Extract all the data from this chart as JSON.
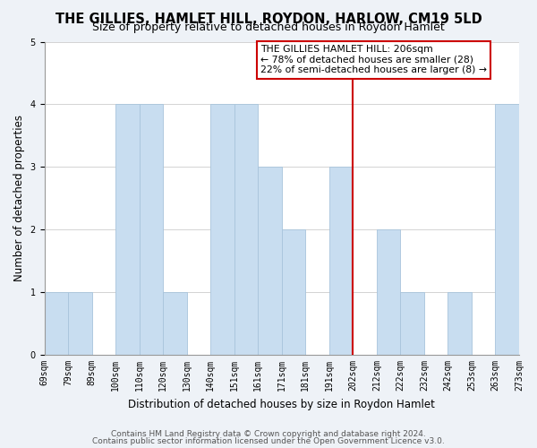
{
  "title": "THE GILLIES, HAMLET HILL, ROYDON, HARLOW, CM19 5LD",
  "subtitle": "Size of property relative to detached houses in Roydon Hamlet",
  "xlabel": "Distribution of detached houses by size in Roydon Hamlet",
  "ylabel": "Number of detached properties",
  "bin_edges": [
    "69sqm",
    "79sqm",
    "89sqm",
    "100sqm",
    "110sqm",
    "120sqm",
    "130sqm",
    "140sqm",
    "151sqm",
    "161sqm",
    "171sqm",
    "181sqm",
    "191sqm",
    "202sqm",
    "212sqm",
    "222sqm",
    "232sqm",
    "242sqm",
    "253sqm",
    "263sqm",
    "273sqm"
  ],
  "bar_values": [
    1,
    1,
    0,
    4,
    4,
    1,
    0,
    4,
    4,
    3,
    2,
    0,
    3,
    0,
    2,
    1,
    0,
    1,
    0,
    4
  ],
  "bar_color": "#c8ddf0",
  "bar_edge_color": "#a8c4dc",
  "ylim": [
    0,
    5
  ],
  "yticks": [
    0,
    1,
    2,
    3,
    4,
    5
  ],
  "reference_line_x": 13,
  "reference_line_color": "#cc0000",
  "annotation_title": "THE GILLIES HAMLET HILL: 206sqm",
  "annotation_line1": "← 78% of detached houses are smaller (28)",
  "annotation_line2": "22% of semi-detached houses are larger (8) →",
  "annotation_box_color": "#ffffff",
  "annotation_box_edge": "#cc0000",
  "footer_line1": "Contains HM Land Registry data © Crown copyright and database right 2024.",
  "footer_line2": "Contains public sector information licensed under the Open Government Licence v3.0.",
  "bg_color": "#eef2f7",
  "plot_bg_color": "#ffffff",
  "title_fontsize": 10.5,
  "subtitle_fontsize": 9,
  "axis_label_fontsize": 8.5,
  "tick_fontsize": 7,
  "annotation_fontsize": 7.8,
  "footer_fontsize": 6.5
}
